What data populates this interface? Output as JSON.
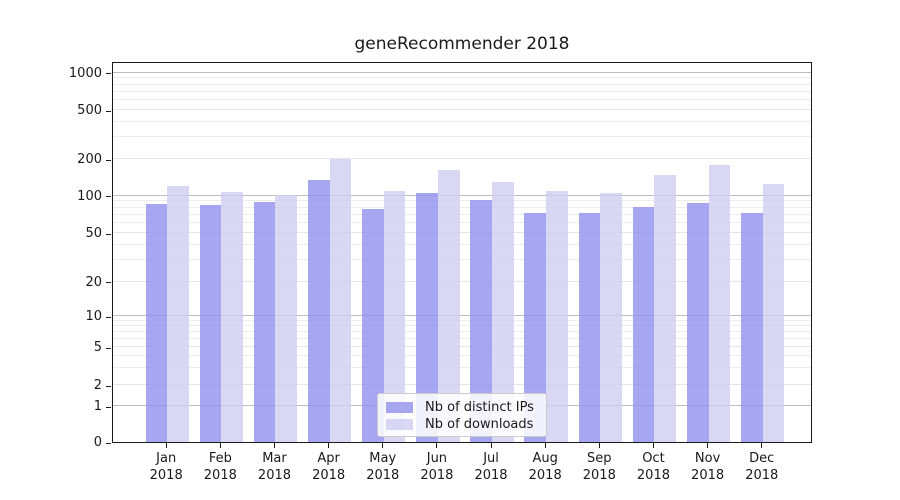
{
  "title": "geneRecommender 2018",
  "chart_data": {
    "type": "bar",
    "title": "geneRecommender 2018",
    "x_categories": [
      "Jan",
      "Feb",
      "Mar",
      "Apr",
      "May",
      "Jun",
      "Jul",
      "Aug",
      "Sep",
      "Oct",
      "Nov",
      "Dec"
    ],
    "x_year": "2018",
    "series": [
      {
        "name": "Nb of distinct IPs",
        "color": "#9191ee",
        "alpha": 0.8,
        "values": [
          86,
          84,
          88,
          134,
          78,
          104,
          92,
          73,
          72,
          81,
          87,
          73
        ]
      },
      {
        "name": "Nb of downloads",
        "color": "#cecef3",
        "alpha": 0.8,
        "values": [
          120,
          107,
          101,
          200,
          108,
          163,
          130,
          109,
          104,
          148,
          177,
          124
        ]
      }
    ],
    "y_ticks": [
      0,
      1,
      2,
      5,
      10,
      20,
      50,
      100,
      200,
      500,
      1000
    ],
    "y_scale": "symlog",
    "ylim": [
      0,
      1200
    ],
    "grid": true,
    "legend_position": "lower center"
  }
}
